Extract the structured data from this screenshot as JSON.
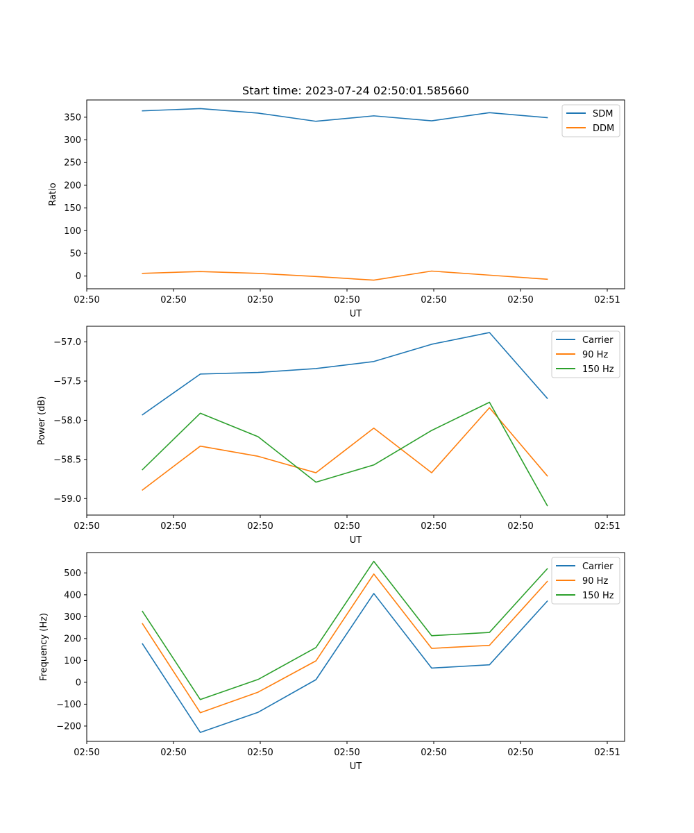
{
  "chart_data": [
    {
      "type": "line",
      "title": "Start time: 2023-07-24 02:50:01.585660",
      "xlabel": "UT",
      "ylabel": "Ratio",
      "x_ticks": [
        "02:50",
        "02:50",
        "02:50",
        "02:50",
        "02:50",
        "02:50",
        "02:51"
      ],
      "xlim": [
        0,
        9.3
      ],
      "ylim": [
        -28,
        388
      ],
      "y_ticks": [
        0,
        50,
        100,
        150,
        200,
        250,
        300,
        350
      ],
      "legend_position": "top-right",
      "x": [
        0.9632,
        1.9632,
        2.9632,
        3.9632,
        4.9632,
        5.9632,
        6.9632,
        7.9632
      ],
      "series": [
        {
          "name": "SDM",
          "color": "#1f77b4",
          "values": [
            364,
            369,
            359,
            341,
            353,
            342,
            360,
            349
          ]
        },
        {
          "name": "DDM",
          "color": "#ff7f0e",
          "values": [
            6,
            10,
            6,
            -1,
            -9,
            11,
            2,
            -7
          ]
        }
      ]
    },
    {
      "type": "line",
      "title": "",
      "xlabel": "UT",
      "ylabel": "Power (dB)",
      "x_ticks": [
        "02:50",
        "02:50",
        "02:50",
        "02:50",
        "02:50",
        "02:50",
        "02:51"
      ],
      "xlim": [
        0,
        9.3
      ],
      "ylim": [
        -59.21,
        -56.8
      ],
      "y_ticks": [
        "-59.0",
        "-58.5",
        "-58.0",
        "-57.5",
        "-57.0"
      ],
      "legend_position": "top-right",
      "x": [
        0.9632,
        1.9632,
        2.9632,
        3.9632,
        4.9632,
        5.9632,
        6.9632,
        7.9632
      ],
      "series": [
        {
          "name": "Carrier",
          "color": "#1f77b4",
          "values": [
            -57.93,
            -57.41,
            -57.39,
            -57.34,
            -57.25,
            -57.03,
            -56.88,
            -57.72
          ]
        },
        {
          "name": "90 Hz",
          "color": "#ff7f0e",
          "values": [
            -58.89,
            -58.33,
            -58.46,
            -58.67,
            -58.1,
            -58.67,
            -57.84,
            -58.71
          ]
        },
        {
          "name": "150 Hz",
          "color": "#2ca02c",
          "values": [
            -58.63,
            -57.91,
            -58.21,
            -58.79,
            -58.57,
            -58.13,
            -57.77,
            -59.09
          ]
        }
      ]
    },
    {
      "type": "line",
      "title": "",
      "xlabel": "UT",
      "ylabel": "Frequency (Hz)",
      "x_ticks": [
        "02:50",
        "02:50",
        "02:50",
        "02:50",
        "02:50",
        "02:50",
        "02:51"
      ],
      "xlim": [
        0,
        9.3
      ],
      "ylim": [
        -270,
        593
      ],
      "y_ticks": [
        -200,
        -100,
        0,
        100,
        200,
        300,
        400,
        500
      ],
      "legend_position": "top-right",
      "x": [
        0.9632,
        1.9632,
        2.9632,
        3.9632,
        4.9632,
        5.9632,
        6.9632,
        7.9632
      ],
      "series": [
        {
          "name": "Carrier",
          "color": "#1f77b4",
          "values": [
            176,
            -229,
            -137,
            12,
            406,
            65,
            80,
            371
          ]
        },
        {
          "name": "90 Hz",
          "color": "#ff7f0e",
          "values": [
            268,
            -139,
            -45,
            98,
            495,
            155,
            169,
            461
          ]
        },
        {
          "name": "150 Hz",
          "color": "#2ca02c",
          "values": [
            324,
            -79,
            13,
            159,
            553,
            213,
            228,
            519
          ]
        }
      ]
    }
  ]
}
